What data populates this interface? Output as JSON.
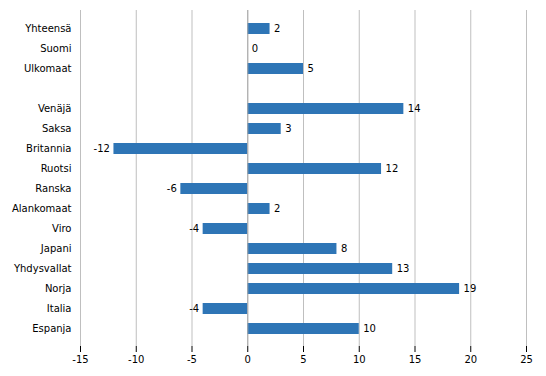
{
  "chart_data": {
    "type": "bar",
    "orientation": "horizontal",
    "categories": [
      "Yhteensä",
      "Suomi",
      "Ulkomaat",
      null,
      "Venäjä",
      "Saksa",
      "Britannia",
      "Ruotsi",
      "Ranska",
      "Alankomaat",
      "Viro",
      "Japani",
      "Yhdysvallat",
      "Norja",
      "Italia",
      "Espanja"
    ],
    "values": [
      2,
      0,
      5,
      null,
      14,
      3,
      -12,
      12,
      -6,
      2,
      -4,
      8,
      13,
      19,
      -4,
      10
    ],
    "color": "#2E75B6",
    "xlim": [
      -15,
      25
    ],
    "xticks": [
      -15,
      -10,
      -5,
      0,
      5,
      10,
      15,
      20,
      25
    ],
    "grid": true,
    "data_labels": true
  }
}
